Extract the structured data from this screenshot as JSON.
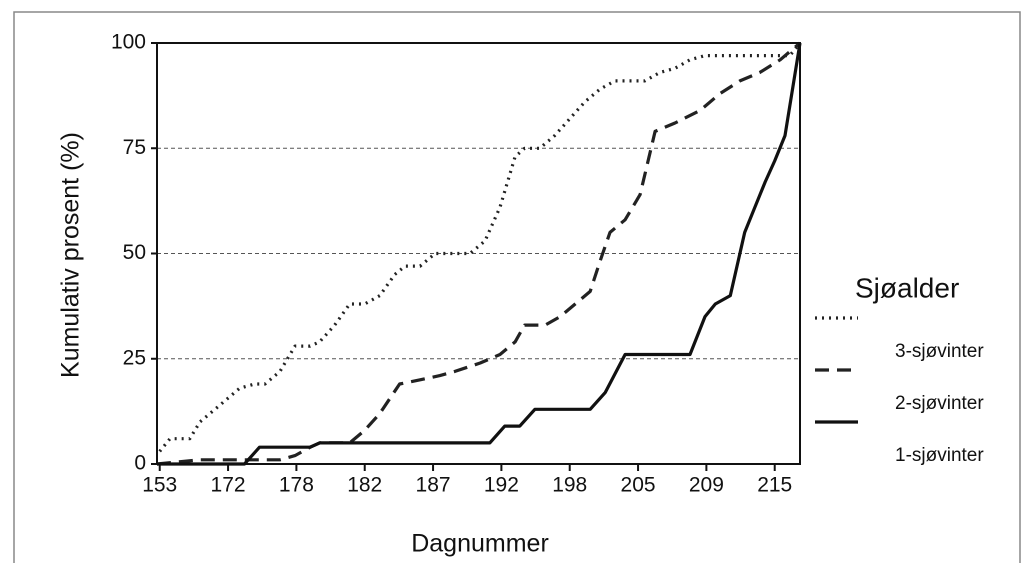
{
  "chart_data": {
    "type": "line",
    "y_label": "Kumulativ prosent (%)",
    "x_label": "Dagnummer",
    "legend_title": "Sjøalder",
    "legend_position": "right",
    "grid": true,
    "xlim": [
      -0.04,
      9.37
    ],
    "xticks": [
      {
        "value": 0,
        "label": "153"
      },
      {
        "value": 1,
        "label": "172"
      },
      {
        "value": 2,
        "label": "178"
      },
      {
        "value": 3,
        "label": "182"
      },
      {
        "value": 4,
        "label": "187"
      },
      {
        "value": 5,
        "label": "192"
      },
      {
        "value": 6,
        "label": "198"
      },
      {
        "value": 7,
        "label": "205"
      },
      {
        "value": 8,
        "label": "209"
      },
      {
        "value": 9,
        "label": "215"
      }
    ],
    "ylim": [
      0,
      100
    ],
    "yticks": [
      0,
      25,
      50,
      75,
      100
    ],
    "series": [
      {
        "name": "3-sjøvinter",
        "color": "#222222",
        "linestyle": "dotted",
        "x": [
          0,
          0.15,
          0.44,
          0.59,
          0.88,
          1.17,
          1.39,
          1.54,
          1.76,
          1.98,
          2.2,
          2.34,
          2.56,
          2.78,
          3.0,
          3.22,
          3.44,
          3.59,
          3.81,
          4.03,
          4.54,
          4.76,
          4.98,
          5.2,
          5.34,
          5.56,
          5.78,
          6.0,
          6.22,
          6.44,
          6.66,
          7.1,
          7.32,
          7.54,
          7.76,
          7.98,
          9.22,
          9.37
        ],
        "values": [
          3,
          6,
          6,
          10,
          14,
          18,
          19,
          19,
          22,
          28,
          28,
          29,
          33,
          38,
          38,
          40,
          45,
          47,
          47,
          50,
          50,
          53,
          61,
          73,
          75,
          75,
          78,
          82,
          86,
          89,
          91,
          91,
          93,
          94,
          96,
          97,
          97,
          100
        ]
      },
      {
        "name": "2-sjøvinter",
        "color": "#222222",
        "linestyle": "dashed",
        "x": [
          -0.04,
          0.59,
          1.17,
          1.39,
          1.76,
          1.98,
          2.2,
          2.34,
          2.78,
          3.0,
          3.22,
          3.51,
          3.81,
          4.1,
          4.32,
          4.69,
          4.98,
          5.2,
          5.34,
          5.64,
          5.86,
          6.08,
          6.3,
          6.44,
          6.59,
          6.81,
          7.03,
          7.25,
          7.54,
          7.91,
          8.2,
          8.49,
          8.78,
          9.08,
          9.37
        ],
        "values": [
          0,
          1,
          1,
          1,
          1,
          2,
          4,
          5,
          5,
          8,
          12,
          19,
          20,
          21,
          22,
          24,
          26,
          29,
          33,
          33,
          35,
          38,
          41,
          48,
          55,
          58,
          64,
          79,
          81,
          84,
          88,
          91,
          93,
          96,
          100
        ]
      },
      {
        "name": "1-sjøvinter",
        "color": "#111111",
        "linestyle": "solid",
        "x": [
          -0.04,
          1.24,
          1.46,
          2.2,
          2.34,
          4.83,
          5.05,
          5.27,
          5.49,
          6.3,
          6.52,
          6.81,
          7.76,
          7.98,
          8.13,
          8.35,
          8.56,
          8.71,
          8.86,
          9.0,
          9.15,
          9.37
        ],
        "values": [
          0,
          0,
          4,
          4,
          5,
          5,
          9,
          9,
          13,
          13,
          17,
          26,
          26,
          35,
          38,
          40,
          55,
          61,
          67,
          72,
          78,
          100
        ]
      }
    ]
  }
}
